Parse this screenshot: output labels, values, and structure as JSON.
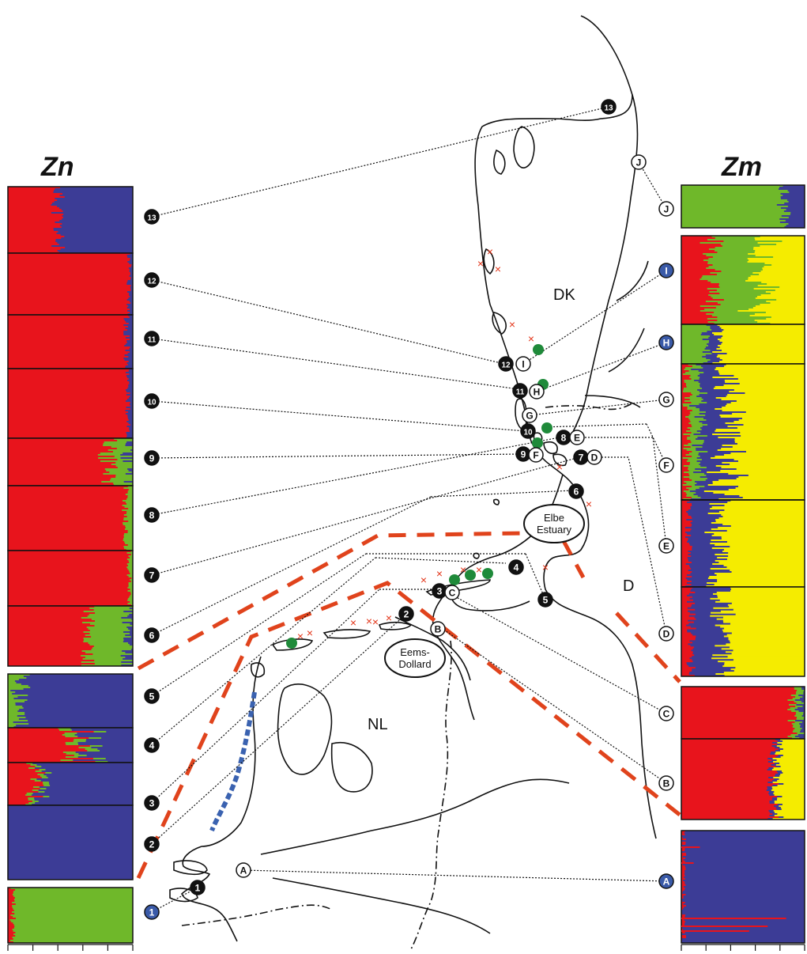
{
  "titles": {
    "left": "Zn",
    "right": "Zm"
  },
  "countries": {
    "dk": "DK",
    "nl": "NL",
    "d": "D"
  },
  "estuaries": {
    "elbe_line1": "Elbe",
    "elbe_line2": "Estuary",
    "eems_line1": "Eems-",
    "eems_line2": "Dollard"
  },
  "zn_markers": [
    "13",
    "12",
    "11",
    "10",
    "9",
    "8",
    "7",
    "6",
    "5",
    "4",
    "3",
    "2",
    "1"
  ],
  "zm_markers": [
    "J",
    "I",
    "H",
    "G",
    "F",
    "E",
    "D",
    "C",
    "B",
    "A"
  ],
  "map_sites_numbers": [
    "13",
    "12",
    "11",
    "10",
    "9",
    "8",
    "7",
    "6",
    "5",
    "4",
    "3",
    "2",
    "1"
  ],
  "map_sites_letters": [
    "J",
    "I",
    "H",
    "G",
    "F",
    "E",
    "D",
    "C",
    "B",
    "A"
  ],
  "colors": {
    "red": "#e8141c",
    "blue": "#3c3c96",
    "green": "#6fb82a",
    "yellow": "#f5ec00",
    "dashed_red": "#e0431c",
    "dashed_blue": "#3a62b0",
    "site_green": "#1f8a3a",
    "cross": "#e3361a",
    "blue_marker": "#3a5aa8"
  }
}
